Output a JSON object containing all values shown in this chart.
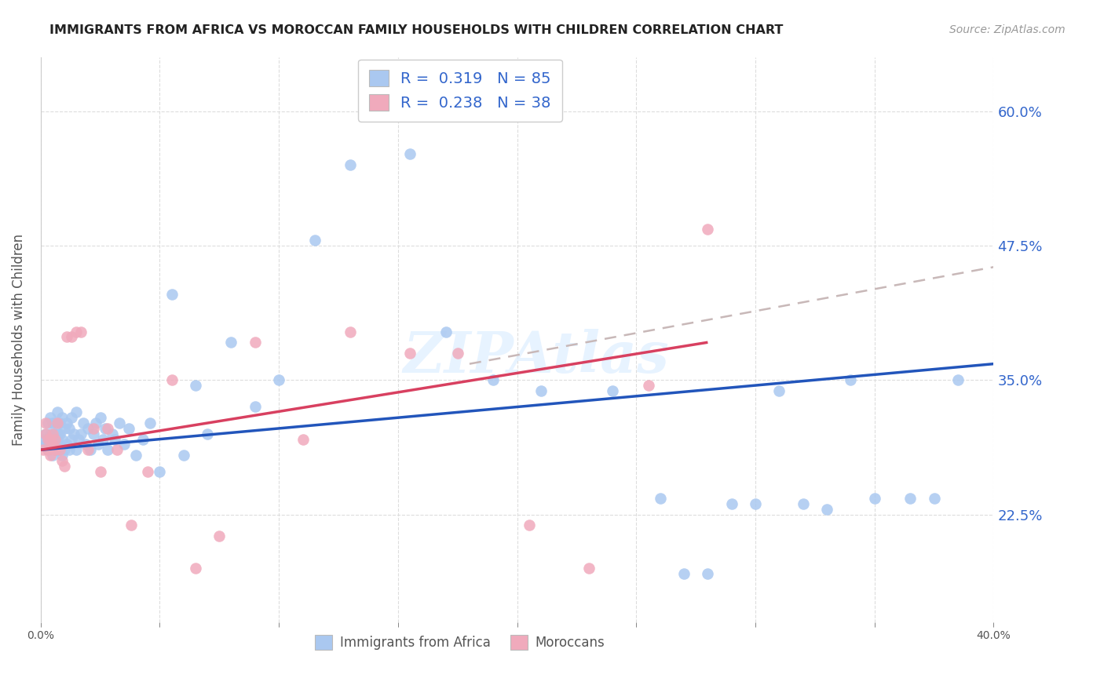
{
  "title": "IMMIGRANTS FROM AFRICA VS MOROCCAN FAMILY HOUSEHOLDS WITH CHILDREN CORRELATION CHART",
  "source": "Source: ZipAtlas.com",
  "ylabel": "Family Households with Children",
  "xlim": [
    0.0,
    0.4
  ],
  "ylim": [
    0.125,
    0.65
  ],
  "background_color": "#ffffff",
  "grid_color": "#dddddd",
  "blue_color": "#aac8f0",
  "blue_line_color": "#2255bb",
  "pink_color": "#f0aabc",
  "pink_line_color": "#d84060",
  "dash_line_color": "#c8b8b8",
  "legend_label1": "Immigrants from Africa",
  "legend_label2": "Moroccans",
  "watermark": "ZIPAtlas",
  "blue_scatter_x": [
    0.001,
    0.002,
    0.002,
    0.003,
    0.003,
    0.003,
    0.004,
    0.004,
    0.004,
    0.005,
    0.005,
    0.005,
    0.006,
    0.006,
    0.006,
    0.007,
    0.007,
    0.007,
    0.007,
    0.008,
    0.008,
    0.008,
    0.009,
    0.009,
    0.009,
    0.01,
    0.01,
    0.011,
    0.011,
    0.012,
    0.012,
    0.013,
    0.013,
    0.014,
    0.015,
    0.015,
    0.016,
    0.017,
    0.018,
    0.019,
    0.02,
    0.021,
    0.022,
    0.023,
    0.024,
    0.025,
    0.026,
    0.027,
    0.028,
    0.03,
    0.031,
    0.033,
    0.035,
    0.037,
    0.04,
    0.043,
    0.046,
    0.05,
    0.055,
    0.06,
    0.065,
    0.07,
    0.08,
    0.09,
    0.1,
    0.115,
    0.13,
    0.155,
    0.17,
    0.19,
    0.21,
    0.24,
    0.26,
    0.29,
    0.31,
    0.33,
    0.35,
    0.365,
    0.375,
    0.385,
    0.27,
    0.28,
    0.3,
    0.32,
    0.34
  ],
  "blue_scatter_y": [
    0.295,
    0.29,
    0.3,
    0.285,
    0.295,
    0.31,
    0.29,
    0.3,
    0.315,
    0.28,
    0.295,
    0.31,
    0.285,
    0.3,
    0.31,
    0.285,
    0.295,
    0.3,
    0.32,
    0.285,
    0.3,
    0.31,
    0.28,
    0.295,
    0.315,
    0.285,
    0.305,
    0.29,
    0.31,
    0.285,
    0.305,
    0.295,
    0.315,
    0.3,
    0.285,
    0.32,
    0.295,
    0.3,
    0.31,
    0.29,
    0.305,
    0.285,
    0.3,
    0.31,
    0.29,
    0.315,
    0.295,
    0.305,
    0.285,
    0.3,
    0.295,
    0.31,
    0.29,
    0.305,
    0.28,
    0.295,
    0.31,
    0.265,
    0.43,
    0.28,
    0.345,
    0.3,
    0.385,
    0.325,
    0.35,
    0.48,
    0.55,
    0.56,
    0.395,
    0.35,
    0.34,
    0.34,
    0.24,
    0.235,
    0.34,
    0.23,
    0.24,
    0.24,
    0.24,
    0.35,
    0.17,
    0.17,
    0.235,
    0.235,
    0.35
  ],
  "pink_scatter_x": [
    0.001,
    0.002,
    0.002,
    0.003,
    0.003,
    0.004,
    0.004,
    0.005,
    0.005,
    0.006,
    0.006,
    0.007,
    0.008,
    0.009,
    0.01,
    0.011,
    0.013,
    0.015,
    0.017,
    0.02,
    0.022,
    0.025,
    0.028,
    0.032,
    0.038,
    0.045,
    0.055,
    0.065,
    0.075,
    0.09,
    0.11,
    0.13,
    0.155,
    0.175,
    0.205,
    0.23,
    0.255,
    0.28
  ],
  "pink_scatter_y": [
    0.285,
    0.3,
    0.31,
    0.285,
    0.295,
    0.28,
    0.295,
    0.29,
    0.3,
    0.285,
    0.295,
    0.31,
    0.285,
    0.275,
    0.27,
    0.39,
    0.39,
    0.395,
    0.395,
    0.285,
    0.305,
    0.265,
    0.305,
    0.285,
    0.215,
    0.265,
    0.35,
    0.175,
    0.205,
    0.385,
    0.295,
    0.395,
    0.375,
    0.375,
    0.215,
    0.175,
    0.345,
    0.49
  ],
  "blue_line_x0": 0.0,
  "blue_line_y0": 0.285,
  "blue_line_x1": 0.4,
  "blue_line_y1": 0.365,
  "pink_line_x0": 0.0,
  "pink_line_y0": 0.285,
  "pink_line_x1": 0.28,
  "pink_line_y1": 0.385,
  "dash_line_x0": 0.18,
  "dash_line_y0": 0.365,
  "dash_line_x1": 0.4,
  "dash_line_y1": 0.455
}
